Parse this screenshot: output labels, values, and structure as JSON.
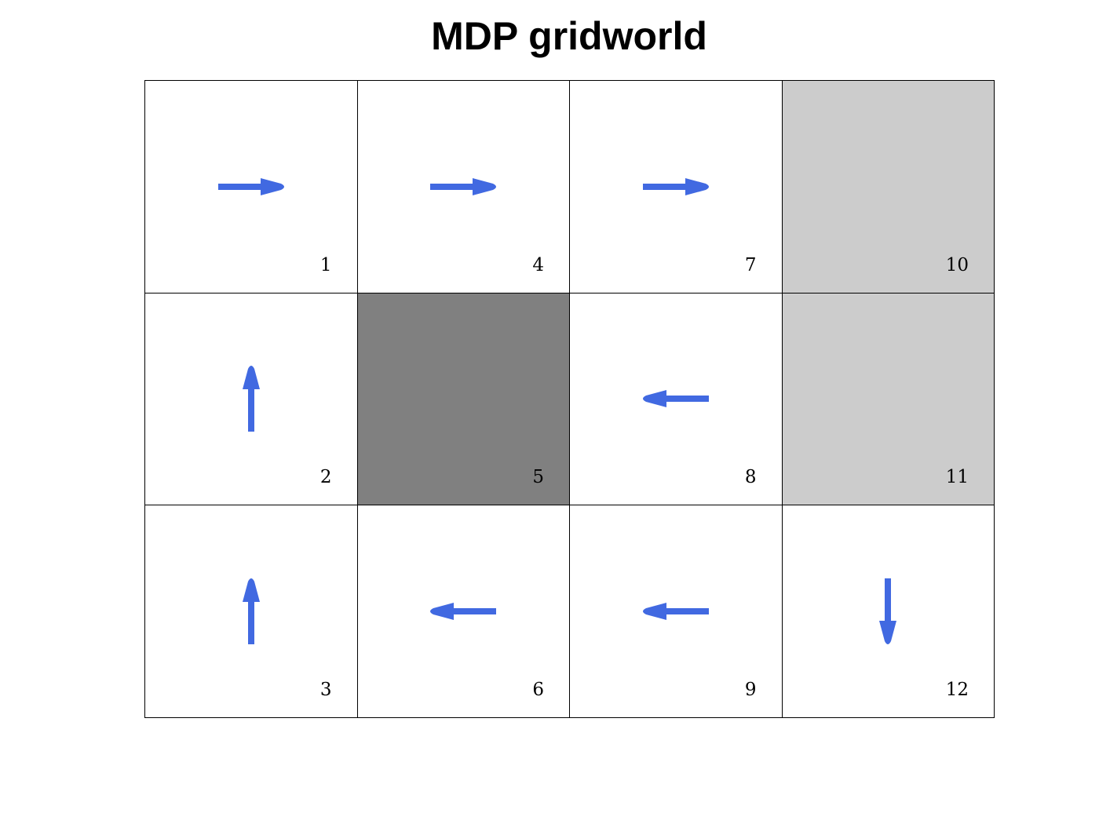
{
  "title": "MDP gridworld",
  "colors": {
    "arrow": "#4169e1",
    "wall": "#808080",
    "terminal": "#cccccc",
    "empty": "#ffffff",
    "grid_line": "#000000"
  },
  "grid": {
    "rows": 3,
    "cols": 4,
    "cells": [
      {
        "id": "1",
        "row": 0,
        "col": 0,
        "type": "empty",
        "action": "right"
      },
      {
        "id": "2",
        "row": 1,
        "col": 0,
        "type": "empty",
        "action": "up"
      },
      {
        "id": "3",
        "row": 2,
        "col": 0,
        "type": "empty",
        "action": "up"
      },
      {
        "id": "4",
        "row": 0,
        "col": 1,
        "type": "empty",
        "action": "right"
      },
      {
        "id": "5",
        "row": 1,
        "col": 1,
        "type": "wall",
        "action": null
      },
      {
        "id": "6",
        "row": 2,
        "col": 1,
        "type": "empty",
        "action": "left"
      },
      {
        "id": "7",
        "row": 0,
        "col": 2,
        "type": "empty",
        "action": "right"
      },
      {
        "id": "8",
        "row": 1,
        "col": 2,
        "type": "empty",
        "action": "left"
      },
      {
        "id": "9",
        "row": 2,
        "col": 2,
        "type": "empty",
        "action": "left"
      },
      {
        "id": "10",
        "row": 0,
        "col": 3,
        "type": "terminal",
        "action": null
      },
      {
        "id": "11",
        "row": 1,
        "col": 3,
        "type": "terminal",
        "action": null
      },
      {
        "id": "12",
        "row": 2,
        "col": 3,
        "type": "empty",
        "action": "down"
      }
    ]
  }
}
